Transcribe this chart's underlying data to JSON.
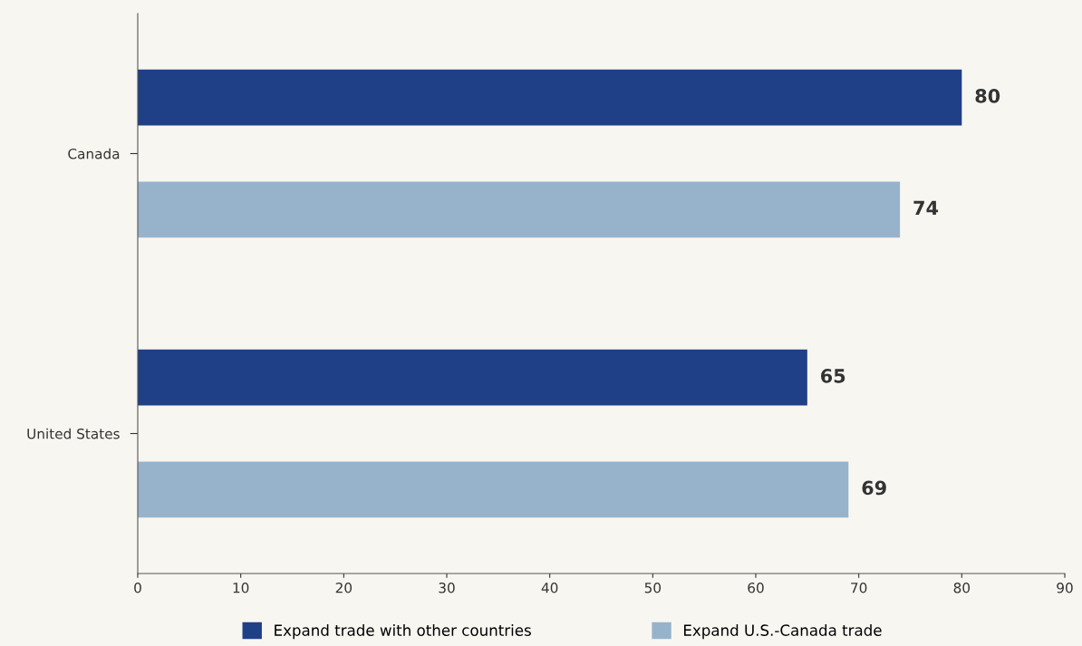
{
  "chart_data": {
    "type": "bar",
    "orientation": "horizontal",
    "categories": [
      "Canada",
      "United States"
    ],
    "series": [
      {
        "name": "Expand trade with other countries",
        "color": "#1f3f87",
        "values": [
          80,
          65
        ]
      },
      {
        "name": "Expand U.S.-Canada trade",
        "color": "#97b3cc",
        "values": [
          74,
          69
        ]
      }
    ],
    "xlim": [
      0,
      90
    ],
    "xticks": [
      0,
      10,
      20,
      30,
      40,
      50,
      60,
      70,
      80,
      90
    ],
    "data_labels": true,
    "grid": false,
    "legend": "bottom"
  }
}
